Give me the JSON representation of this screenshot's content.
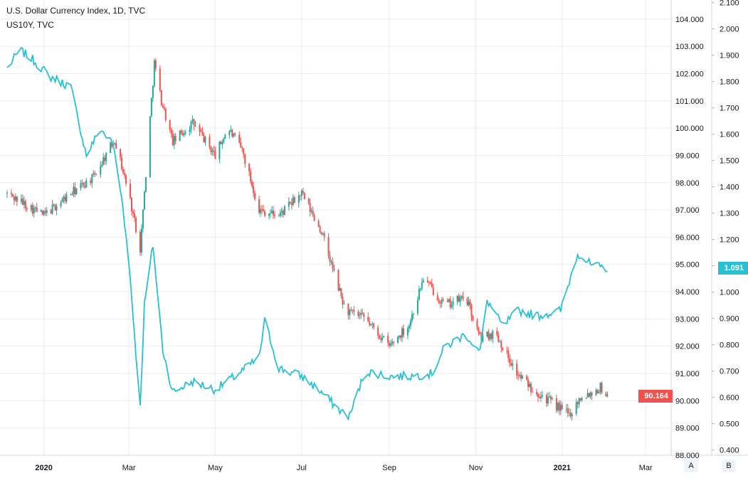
{
  "legend": {
    "main_symbol": "U.S. Dollar Currency Index, 1D, TVC",
    "overlay_symbol": "US10Y, TVC"
  },
  "badges": {
    "dxy_last": "90.164",
    "us10y_last": "1.091"
  },
  "buttons": {
    "left": "A",
    "right": "B"
  },
  "colors": {
    "up": "#26a69a",
    "down": "#ef5350",
    "overlay_line": "#29c0d4",
    "grid": "#e9ecf1",
    "axis_text": "#131722"
  },
  "chart_data": [
    {
      "type": "candlestick",
      "series_name": "U.S. Dollar Currency Index",
      "x": [
        "2019-12-06",
        "2020-01-01",
        "2020-01-20",
        "2020-02-05",
        "2020-02-20",
        "2020-03-01",
        "2020-03-09",
        "2020-03-19",
        "2020-03-24",
        "2020-04-01",
        "2020-04-15",
        "2020-05-01",
        "2020-05-10",
        "2020-05-20",
        "2020-06-01",
        "2020-06-15",
        "2020-07-01",
        "2020-07-15",
        "2020-08-01",
        "2020-08-15",
        "2020-09-01",
        "2020-09-15",
        "2020-09-25",
        "2020-10-10",
        "2020-10-25",
        "2020-11-04",
        "2020-11-15",
        "2020-11-30",
        "2020-12-10",
        "2020-12-20",
        "2021-01-06",
        "2021-01-15",
        "2021-01-22",
        "2021-01-28",
        "2021-02-02"
      ],
      "close": [
        97.6,
        96.8,
        97.6,
        98.2,
        99.6,
        97.6,
        95.6,
        102.4,
        101.0,
        99.5,
        100.2,
        99.0,
        100.0,
        99.2,
        97.0,
        96.8,
        97.6,
        96.2,
        93.3,
        93.0,
        92.0,
        92.8,
        94.5,
        93.5,
        93.8,
        92.3,
        92.5,
        91.0,
        90.5,
        90.1,
        89.5,
        90.2,
        90.3,
        90.5,
        90.164
      ],
      "y_axis_ticks": [
        "88.000",
        "89.000",
        "90.000",
        "91.000",
        "92.000",
        "93.000",
        "94.000",
        "95.000",
        "96.000",
        "97.000",
        "98.000",
        "99.000",
        "100.000",
        "101.000",
        "102.000",
        "103.000",
        "104.000"
      ],
      "ylim": [
        88,
        104.7
      ]
    },
    {
      "type": "line",
      "series_name": "US10Y",
      "x": [
        "2019-12-06",
        "2019-12-15",
        "2019-12-25",
        "2020-01-05",
        "2020-01-20",
        "2020-01-31",
        "2020-02-10",
        "2020-02-19",
        "2020-02-26",
        "2020-03-02",
        "2020-03-09",
        "2020-03-12",
        "2020-03-18",
        "2020-03-25",
        "2020-04-01",
        "2020-04-15",
        "2020-05-01",
        "2020-05-15",
        "2020-06-01",
        "2020-06-05",
        "2020-06-15",
        "2020-07-01",
        "2020-07-15",
        "2020-07-28",
        "2020-08-04",
        "2020-08-15",
        "2020-09-01",
        "2020-09-15",
        "2020-10-01",
        "2020-10-10",
        "2020-10-25",
        "2020-11-04",
        "2020-11-09",
        "2020-11-20",
        "2020-12-01",
        "2020-12-15",
        "2020-12-31",
        "2021-01-06",
        "2021-01-12",
        "2021-01-22",
        "2021-02-02"
      ],
      "values": [
        1.85,
        1.92,
        1.88,
        1.82,
        1.78,
        1.52,
        1.62,
        1.56,
        1.32,
        1.05,
        0.56,
        0.95,
        1.18,
        0.78,
        0.62,
        0.66,
        0.63,
        0.68,
        0.75,
        0.89,
        0.71,
        0.68,
        0.62,
        0.55,
        0.53,
        0.7,
        0.68,
        0.68,
        0.69,
        0.79,
        0.84,
        0.77,
        0.97,
        0.87,
        0.93,
        0.91,
        0.93,
        1.04,
        1.15,
        1.1,
        1.091
      ],
      "y_axis_ticks": [
        "0.400",
        "0.500",
        "0.600",
        "0.700",
        "0.800",
        "0.900",
        "1.000",
        "1.100",
        "1.200",
        "1.300",
        "1.400",
        "1.500",
        "1.600",
        "1.700",
        "1.800",
        "1.900",
        "2.000",
        "2.100"
      ],
      "ylim": [
        0.38,
        2.11
      ]
    }
  ],
  "x_axis_labels": [
    "2020",
    "Mar",
    "May",
    "Jul",
    "Sep",
    "Nov",
    "2021",
    "Mar"
  ]
}
